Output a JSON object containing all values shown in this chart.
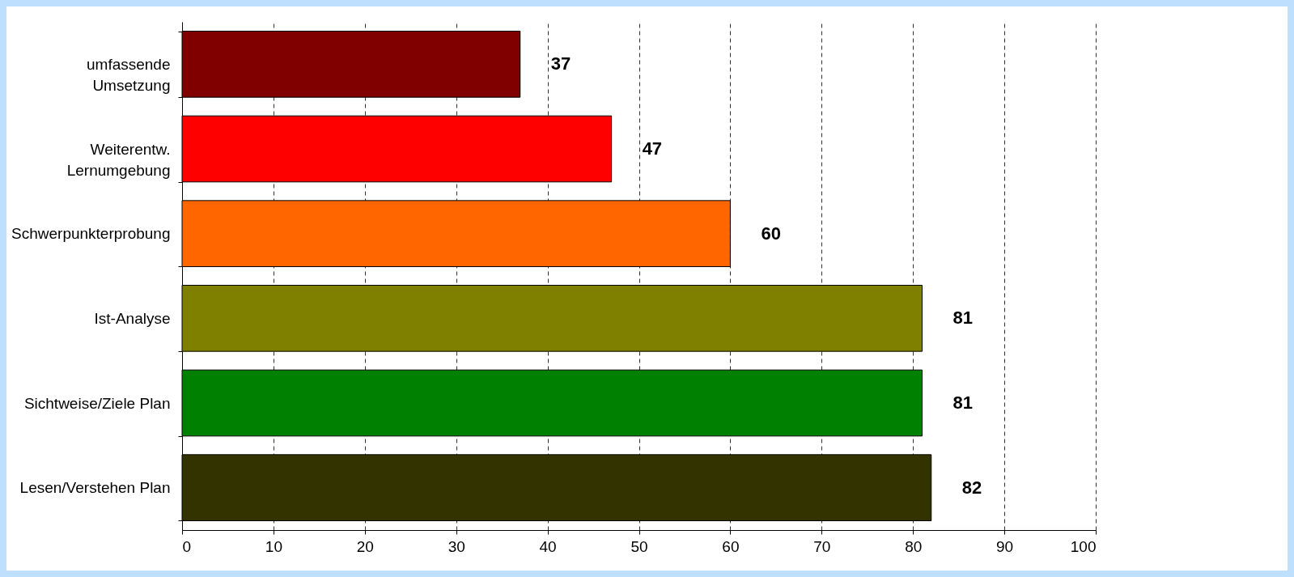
{
  "chart_data": {
    "type": "bar",
    "orientation": "horizontal",
    "categories": [
      "umfassende\nUmsetzung",
      "Weiterentw.\nLernumgebung",
      "Schwerpunkterprobung",
      "Ist-Analyse",
      "Sichtweise/Ziele  Plan",
      "Lesen/Verstehen  Plan"
    ],
    "values": [
      37,
      47,
      60,
      81,
      81,
      82
    ],
    "colors": [
      "#800000",
      "#ff0000",
      "#ff6600",
      "#808000",
      "#008000",
      "#333300"
    ],
    "xlim": [
      0,
      100
    ],
    "xticks": [
      0,
      10,
      20,
      30,
      40,
      50,
      60,
      70,
      80,
      90,
      100
    ],
    "grid": "x",
    "data_labels": true
  }
}
